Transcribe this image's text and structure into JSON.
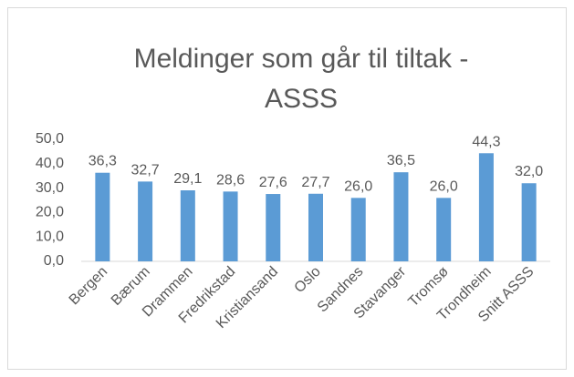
{
  "chart_data": {
    "type": "bar",
    "title_lines": [
      "Meldinger som går til tiltak -",
      "ASSS"
    ],
    "categories": [
      "Bergen",
      "Bærum",
      "Drammen",
      "Fredrikstad",
      "Kristiansand",
      "Oslo",
      "Sandnes",
      "Stavanger",
      "Tromsø",
      "Trondheim",
      "Snitt ASSS"
    ],
    "values": [
      36.3,
      32.7,
      29.1,
      28.6,
      27.6,
      27.7,
      26.0,
      36.5,
      26.0,
      44.3,
      32.0
    ],
    "value_labels": [
      "36,3",
      "32,7",
      "29,1",
      "28,6",
      "27,6",
      "27,7",
      "26,0",
      "36,5",
      "26,0",
      "44,3",
      "32,0"
    ],
    "color": "#5b9bd5",
    "ylim": [
      0,
      50
    ],
    "yticks": [
      {
        "value": 0,
        "label": "0,0"
      },
      {
        "value": 10,
        "label": "10,0"
      },
      {
        "value": 20,
        "label": "20,0"
      },
      {
        "value": 30,
        "label": "30,0"
      },
      {
        "value": 40,
        "label": "40,0"
      },
      {
        "value": 50,
        "label": "50,0"
      }
    ],
    "grid": false
  }
}
